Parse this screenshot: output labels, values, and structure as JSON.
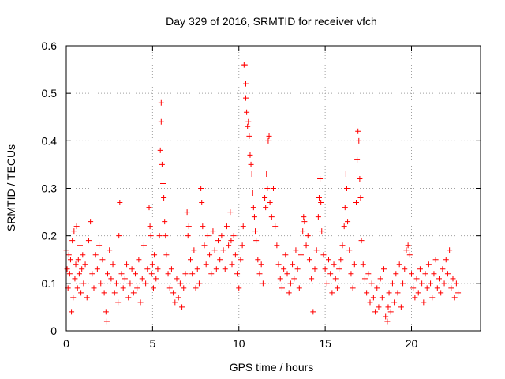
{
  "chart_data": {
    "type": "scatter",
    "title": "Day 329 of 2016, SRMTID for receiver vfch",
    "xlabel": "GPS time / hours",
    "ylabel": "SRMTID / TECUs",
    "xlim": [
      0,
      24
    ],
    "ylim": [
      0,
      0.6
    ],
    "x_ticks": [
      0,
      5,
      10,
      15,
      20
    ],
    "x_tick_labels": [
      "0",
      "5",
      "10",
      "15",
      "20"
    ],
    "y_ticks": [
      0,
      0.1,
      0.2,
      0.3,
      0.4,
      0.5,
      0.6
    ],
    "y_tick_labels": [
      "0",
      "0.1",
      "0.2",
      "0.3",
      "0.4",
      "0.5",
      "0.6"
    ],
    "grid": true,
    "marker": "plus",
    "color": "#ff0000",
    "series": [
      {
        "name": "SRMTID",
        "points": [
          [
            0.0,
            0.17
          ],
          [
            0.05,
            0.13
          ],
          [
            0.1,
            0.09
          ],
          [
            0.15,
            0.16
          ],
          [
            0.2,
            0.12
          ],
          [
            0.25,
            0.15
          ],
          [
            0.3,
            0.04
          ],
          [
            0.35,
            0.19
          ],
          [
            0.4,
            0.07
          ],
          [
            0.45,
            0.21
          ],
          [
            0.5,
            0.11
          ],
          [
            0.55,
            0.14
          ],
          [
            0.6,
            0.22
          ],
          [
            0.65,
            0.09
          ],
          [
            0.7,
            0.15
          ],
          [
            0.75,
            0.12
          ],
          [
            0.8,
            0.18
          ],
          [
            0.85,
            0.08
          ],
          [
            0.9,
            0.13
          ],
          [
            0.95,
            0.16
          ],
          [
            1.0,
            0.1
          ],
          [
            1.1,
            0.14
          ],
          [
            1.2,
            0.07
          ],
          [
            1.3,
            0.19
          ],
          [
            1.4,
            0.23
          ],
          [
            1.5,
            0.12
          ],
          [
            1.6,
            0.09
          ],
          [
            1.7,
            0.16
          ],
          [
            1.8,
            0.13
          ],
          [
            1.9,
            0.18
          ],
          [
            2.0,
            0.1
          ],
          [
            2.1,
            0.15
          ],
          [
            2.2,
            0.08
          ],
          [
            2.3,
            0.04
          ],
          [
            2.35,
            0.02
          ],
          [
            2.4,
            0.12
          ],
          [
            2.5,
            0.17
          ],
          [
            2.6,
            0.11
          ],
          [
            2.7,
            0.14
          ],
          [
            2.8,
            0.08
          ],
          [
            2.9,
            0.1
          ],
          [
            3.0,
            0.06
          ],
          [
            3.05,
            0.2
          ],
          [
            3.1,
            0.27
          ],
          [
            3.2,
            0.12
          ],
          [
            3.3,
            0.09
          ],
          [
            3.4,
            0.11
          ],
          [
            3.5,
            0.14
          ],
          [
            3.6,
            0.07
          ],
          [
            3.7,
            0.1
          ],
          [
            3.8,
            0.13
          ],
          [
            3.9,
            0.08
          ],
          [
            4.0,
            0.12
          ],
          [
            4.1,
            0.09
          ],
          [
            4.2,
            0.15
          ],
          [
            4.3,
            0.06
          ],
          [
            4.4,
            0.11
          ],
          [
            4.5,
            0.18
          ],
          [
            4.6,
            0.1
          ],
          [
            4.7,
            0.13
          ],
          [
            4.8,
            0.26
          ],
          [
            4.85,
            0.22
          ],
          [
            4.9,
            0.2
          ],
          [
            4.95,
            0.12
          ],
          [
            5.0,
            0.14
          ],
          [
            5.05,
            0.09
          ],
          [
            5.1,
            0.16
          ],
          [
            5.2,
            0.11
          ],
          [
            5.3,
            0.13
          ],
          [
            5.4,
            0.2
          ],
          [
            5.45,
            0.38
          ],
          [
            5.5,
            0.48
          ],
          [
            5.5,
            0.44
          ],
          [
            5.55,
            0.35
          ],
          [
            5.6,
            0.31
          ],
          [
            5.65,
            0.28
          ],
          [
            5.7,
            0.23
          ],
          [
            5.75,
            0.2
          ],
          [
            5.8,
            0.16
          ],
          [
            5.9,
            0.12
          ],
          [
            6.0,
            0.09
          ],
          [
            6.1,
            0.13
          ],
          [
            6.2,
            0.08
          ],
          [
            6.3,
            0.06
          ],
          [
            6.4,
            0.11
          ],
          [
            6.5,
            0.07
          ],
          [
            6.6,
            0.1
          ],
          [
            6.7,
            0.05
          ],
          [
            6.8,
            0.09
          ],
          [
            6.9,
            0.12
          ],
          [
            7.0,
            0.25
          ],
          [
            7.05,
            0.2
          ],
          [
            7.1,
            0.22
          ],
          [
            7.2,
            0.15
          ],
          [
            7.3,
            0.12
          ],
          [
            7.4,
            0.17
          ],
          [
            7.5,
            0.09
          ],
          [
            7.6,
            0.13
          ],
          [
            7.7,
            0.1
          ],
          [
            7.8,
            0.3
          ],
          [
            7.85,
            0.27
          ],
          [
            7.9,
            0.22
          ],
          [
            8.0,
            0.18
          ],
          [
            8.1,
            0.14
          ],
          [
            8.2,
            0.2
          ],
          [
            8.3,
            0.16
          ],
          [
            8.4,
            0.12
          ],
          [
            8.5,
            0.21
          ],
          [
            8.6,
            0.17
          ],
          [
            8.7,
            0.13
          ],
          [
            8.8,
            0.19
          ],
          [
            8.9,
            0.15
          ],
          [
            9.0,
            0.2
          ],
          [
            9.1,
            0.17
          ],
          [
            9.2,
            0.13
          ],
          [
            9.3,
            0.22
          ],
          [
            9.4,
            0.18
          ],
          [
            9.5,
            0.25
          ],
          [
            9.55,
            0.19
          ],
          [
            9.6,
            0.14
          ],
          [
            9.7,
            0.2
          ],
          [
            9.8,
            0.16
          ],
          [
            9.9,
            0.12
          ],
          [
            10.0,
            0.09
          ],
          [
            10.1,
            0.15
          ],
          [
            10.2,
            0.18
          ],
          [
            10.25,
            0.22
          ],
          [
            10.3,
            0.56
          ],
          [
            10.35,
            0.56
          ],
          [
            10.4,
            0.52
          ],
          [
            10.4,
            0.49
          ],
          [
            10.45,
            0.46
          ],
          [
            10.5,
            0.43
          ],
          [
            10.55,
            0.44
          ],
          [
            10.6,
            0.41
          ],
          [
            10.65,
            0.37
          ],
          [
            10.7,
            0.35
          ],
          [
            10.75,
            0.33
          ],
          [
            10.8,
            0.29
          ],
          [
            10.85,
            0.26
          ],
          [
            10.9,
            0.24
          ],
          [
            10.95,
            0.21
          ],
          [
            11.0,
            0.19
          ],
          [
            11.1,
            0.15
          ],
          [
            11.2,
            0.12
          ],
          [
            11.3,
            0.14
          ],
          [
            11.4,
            0.1
          ],
          [
            11.5,
            0.28
          ],
          [
            11.55,
            0.26
          ],
          [
            11.6,
            0.33
          ],
          [
            11.65,
            0.3
          ],
          [
            11.7,
            0.4
          ],
          [
            11.75,
            0.41
          ],
          [
            11.8,
            0.27
          ],
          [
            11.9,
            0.24
          ],
          [
            12.0,
            0.3
          ],
          [
            12.1,
            0.22
          ],
          [
            12.2,
            0.18
          ],
          [
            12.3,
            0.14
          ],
          [
            12.4,
            0.11
          ],
          [
            12.5,
            0.09
          ],
          [
            12.6,
            0.13
          ],
          [
            12.7,
            0.16
          ],
          [
            12.8,
            0.12
          ],
          [
            12.9,
            0.08
          ],
          [
            13.0,
            0.1
          ],
          [
            13.1,
            0.14
          ],
          [
            13.2,
            0.11
          ],
          [
            13.3,
            0.17
          ],
          [
            13.4,
            0.13
          ],
          [
            13.5,
            0.09
          ],
          [
            13.6,
            0.16
          ],
          [
            13.7,
            0.21
          ],
          [
            13.75,
            0.24
          ],
          [
            13.8,
            0.23
          ],
          [
            13.9,
            0.18
          ],
          [
            14.0,
            0.2
          ],
          [
            14.1,
            0.15
          ],
          [
            14.2,
            0.11
          ],
          [
            14.3,
            0.04
          ],
          [
            14.4,
            0.13
          ],
          [
            14.5,
            0.17
          ],
          [
            14.6,
            0.24
          ],
          [
            14.65,
            0.28
          ],
          [
            14.7,
            0.32
          ],
          [
            14.75,
            0.27
          ],
          [
            14.8,
            0.21
          ],
          [
            14.9,
            0.16
          ],
          [
            15.0,
            0.13
          ],
          [
            15.1,
            0.1
          ],
          [
            15.2,
            0.15
          ],
          [
            15.3,
            0.12
          ],
          [
            15.4,
            0.08
          ],
          [
            15.5,
            0.14
          ],
          [
            15.6,
            0.11
          ],
          [
            15.7,
            0.09
          ],
          [
            15.8,
            0.13
          ],
          [
            15.9,
            0.15
          ],
          [
            16.0,
            0.18
          ],
          [
            16.1,
            0.22
          ],
          [
            16.15,
            0.26
          ],
          [
            16.2,
            0.33
          ],
          [
            16.25,
            0.3
          ],
          [
            16.3,
            0.23
          ],
          [
            16.4,
            0.17
          ],
          [
            16.5,
            0.12
          ],
          [
            16.6,
            0.09
          ],
          [
            16.7,
            0.14
          ],
          [
            16.8,
            0.27
          ],
          [
            16.85,
            0.36
          ],
          [
            16.9,
            0.42
          ],
          [
            16.95,
            0.4
          ],
          [
            17.0,
            0.32
          ],
          [
            17.05,
            0.28
          ],
          [
            17.1,
            0.19
          ],
          [
            17.2,
            0.14
          ],
          [
            17.3,
            0.11
          ],
          [
            17.4,
            0.08
          ],
          [
            17.5,
            0.12
          ],
          [
            17.6,
            0.06
          ],
          [
            17.7,
            0.1
          ],
          [
            17.8,
            0.07
          ],
          [
            17.9,
            0.04
          ],
          [
            18.0,
            0.09
          ],
          [
            18.1,
            0.05
          ],
          [
            18.2,
            0.11
          ],
          [
            18.3,
            0.07
          ],
          [
            18.4,
            0.13
          ],
          [
            18.5,
            0.03
          ],
          [
            18.6,
            0.02
          ],
          [
            18.65,
            0.05
          ],
          [
            18.7,
            0.08
          ],
          [
            18.8,
            0.04
          ],
          [
            18.9,
            0.1
          ],
          [
            19.0,
            0.06
          ],
          [
            19.1,
            0.12
          ],
          [
            19.2,
            0.08
          ],
          [
            19.3,
            0.14
          ],
          [
            19.4,
            0.05
          ],
          [
            19.5,
            0.1
          ],
          [
            19.6,
            0.13
          ],
          [
            19.7,
            0.17
          ],
          [
            19.8,
            0.18
          ],
          [
            19.9,
            0.16
          ],
          [
            20.0,
            0.12
          ],
          [
            20.1,
            0.09
          ],
          [
            20.2,
            0.07
          ],
          [
            20.3,
            0.11
          ],
          [
            20.4,
            0.08
          ],
          [
            20.5,
            0.13
          ],
          [
            20.6,
            0.1
          ],
          [
            20.7,
            0.06
          ],
          [
            20.8,
            0.12
          ],
          [
            20.9,
            0.09
          ],
          [
            21.0,
            0.14
          ],
          [
            21.1,
            0.1
          ],
          [
            21.2,
            0.07
          ],
          [
            21.3,
            0.12
          ],
          [
            21.4,
            0.15
          ],
          [
            21.5,
            0.09
          ],
          [
            21.6,
            0.11
          ],
          [
            21.7,
            0.08
          ],
          [
            21.8,
            0.13
          ],
          [
            21.9,
            0.1
          ],
          [
            22.0,
            0.15
          ],
          [
            22.1,
            0.12
          ],
          [
            22.2,
            0.17
          ],
          [
            22.3,
            0.09
          ],
          [
            22.4,
            0.11
          ],
          [
            22.5,
            0.07
          ],
          [
            22.6,
            0.1
          ],
          [
            22.7,
            0.08
          ]
        ]
      }
    ]
  }
}
